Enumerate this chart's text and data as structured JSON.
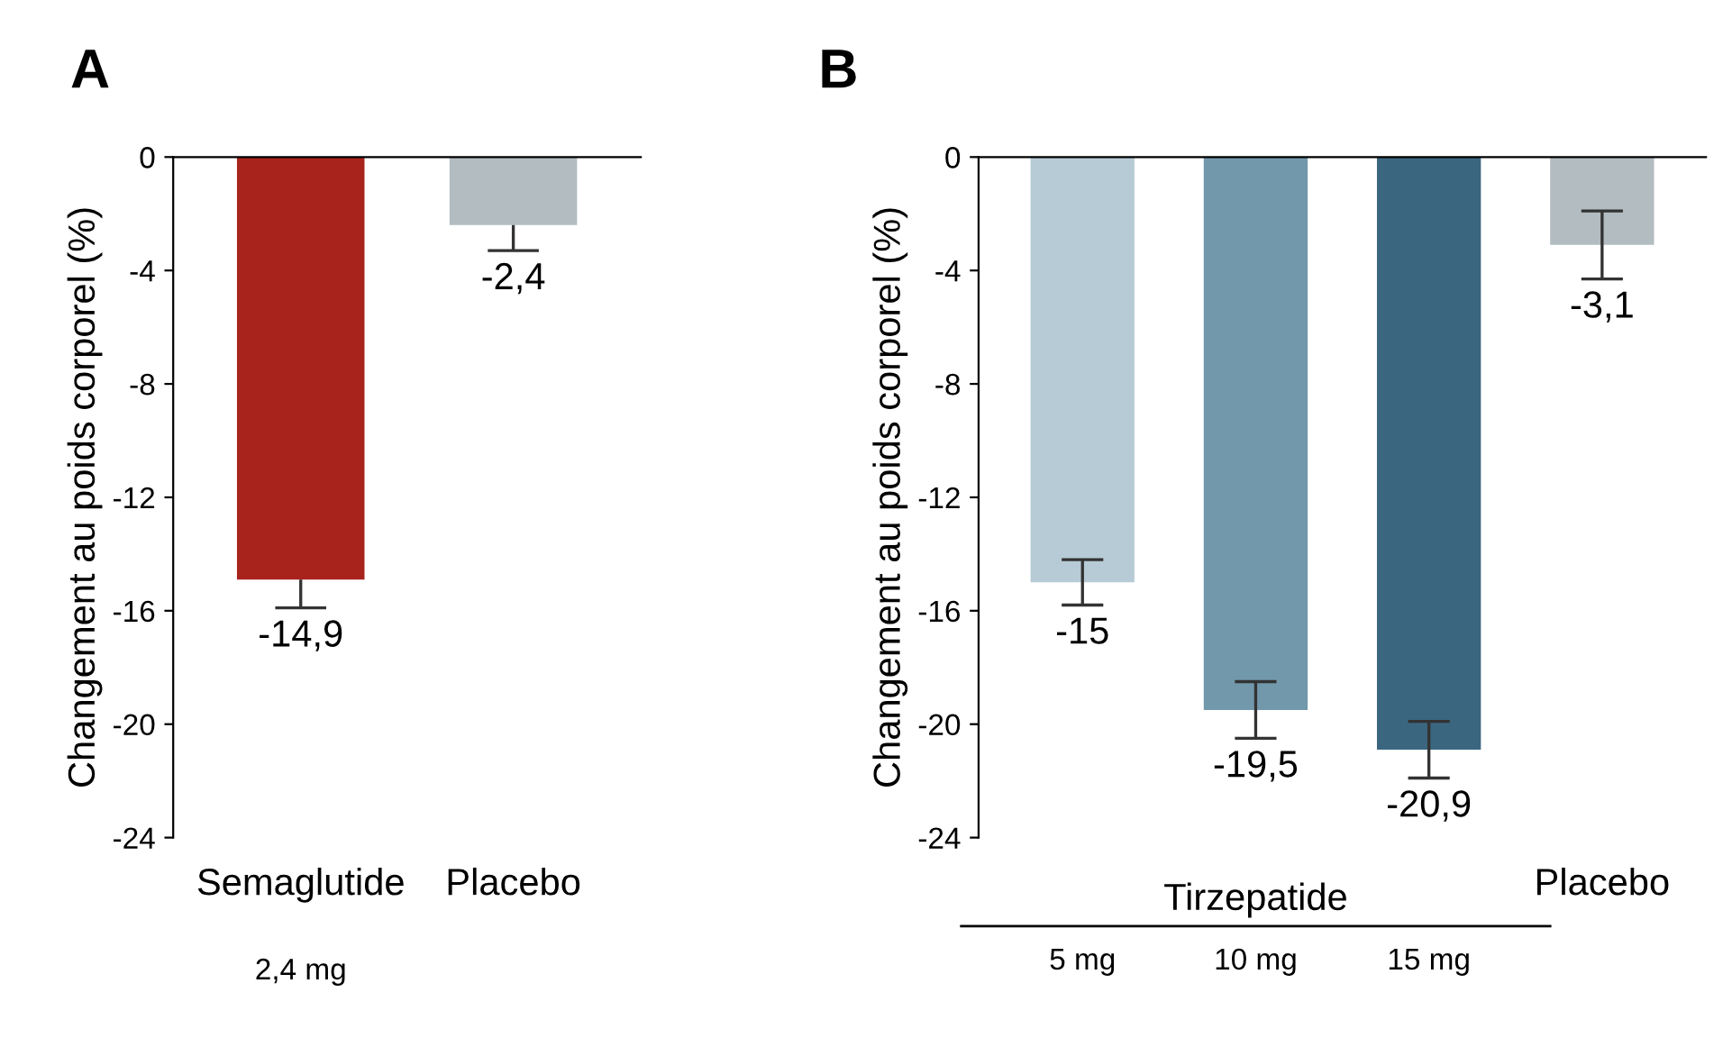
{
  "chart_data": [
    {
      "type": "bar",
      "title": "A",
      "ylabel": "Changement au poids corporel (%)",
      "categories": [
        "Semaglutide",
        "Placebo"
      ],
      "series": [
        {
          "colors": [
            "#a8231c",
            "#b3bcc0"
          ],
          "values": [
            -14.9,
            -2.4
          ],
          "errors": [
            [
              -15.9,
              -14.9
            ],
            [
              -3.3,
              -2.4
            ]
          ],
          "value_labels": [
            "-14,9",
            "-2,4"
          ]
        }
      ],
      "ylim": [
        -24,
        0
      ],
      "yticks": [
        -24,
        -20,
        -16,
        -12,
        -8,
        -4,
        0
      ],
      "grid": false,
      "annotations": [
        "2,4 mg"
      ]
    },
    {
      "type": "bar",
      "title": "B",
      "ylabel": "Changement au poids corporel (%)",
      "categories": [
        "5 mg",
        "10 mg",
        "15 mg",
        "Placebo"
      ],
      "series": [
        {
          "colors": [
            "#b7cbd6",
            "#7298ab",
            "#3b6680",
            "#b3bcc0"
          ],
          "values": [
            -15,
            -19.5,
            -20.9,
            -3.1
          ],
          "errors": [
            [
              -15.8,
              -14.2
            ],
            [
              -20.5,
              -18.5
            ],
            [
              -21.9,
              -19.9
            ],
            [
              -4.3,
              -1.9
            ]
          ],
          "value_labels": [
            "-15",
            "-19,5",
            "-20,9",
            "-3,1"
          ]
        }
      ],
      "ylim": [
        -24,
        0
      ],
      "yticks": [
        -24,
        -20,
        -16,
        -12,
        -8,
        -4,
        0
      ],
      "grid": false,
      "annotations": [
        "Tirzepatide"
      ]
    }
  ]
}
